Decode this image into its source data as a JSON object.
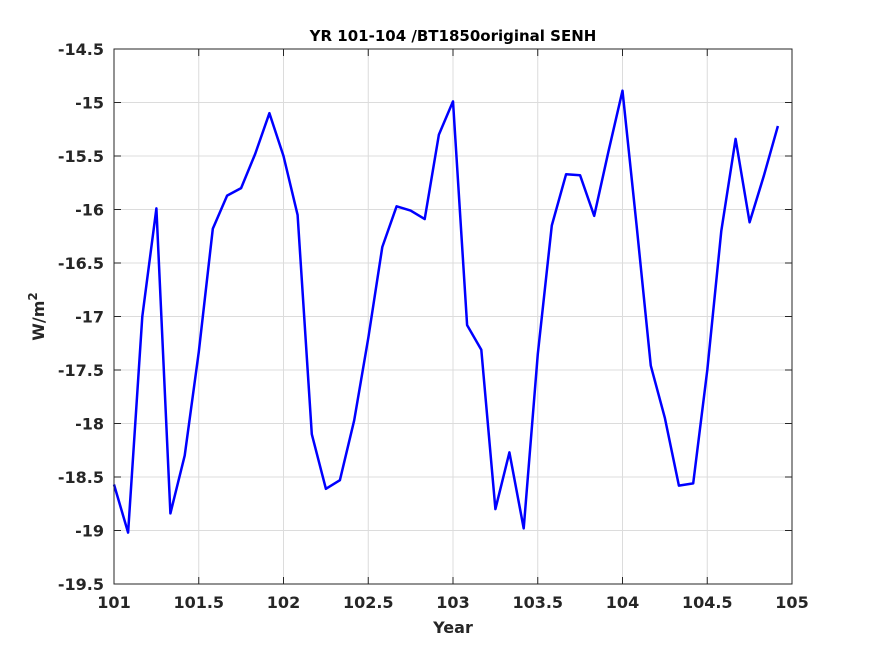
{
  "chart_data": {
    "type": "line",
    "title": "YR 101-104 /BT1850original SENH",
    "xlabel": "Year",
    "ylabel": "W/m",
    "ylabel_superscript": "2",
    "xlim": [
      101,
      105
    ],
    "ylim": [
      -19.5,
      -14.5
    ],
    "xticks": [
      101,
      101.5,
      102,
      102.5,
      103,
      103.5,
      104,
      104.5,
      105
    ],
    "xtick_labels": [
      "101",
      "101.5",
      "102",
      "102.5",
      "103",
      "103.5",
      "104",
      "104.5",
      "105"
    ],
    "yticks": [
      -19.5,
      -19,
      -18.5,
      -18,
      -17.5,
      -17,
      -16.5,
      -16,
      -15.5,
      -15,
      -14.5
    ],
    "ytick_labels": [
      "-19.5",
      "-19",
      "-18.5",
      "-18",
      "-17.5",
      "-17",
      "-16.5",
      "-16",
      "-15.5",
      "-15",
      "-14.5"
    ],
    "grid": true,
    "series": [
      {
        "color": "#0000ff",
        "x": [
          101.0,
          101.083,
          101.167,
          101.25,
          101.333,
          101.417,
          101.5,
          101.583,
          101.667,
          101.75,
          101.833,
          101.917,
          102.0,
          102.083,
          102.167,
          102.25,
          102.333,
          102.417,
          102.5,
          102.583,
          102.667,
          102.75,
          102.833,
          102.917,
          103.0,
          103.083,
          103.167,
          103.25,
          103.333,
          103.417,
          103.5,
          103.583,
          103.667,
          103.75,
          103.833,
          103.917,
          104.0,
          104.083,
          104.167,
          104.25,
          104.333,
          104.417,
          104.5,
          104.583,
          104.667,
          104.75,
          104.833,
          104.917
        ],
        "y": [
          -18.57,
          -19.02,
          -17.0,
          -15.99,
          -18.84,
          -18.3,
          -17.33,
          -16.18,
          -15.87,
          -15.8,
          -15.48,
          -15.1,
          -15.5,
          -16.05,
          -18.1,
          -18.61,
          -18.53,
          -17.97,
          -17.2,
          -16.35,
          -15.97,
          -16.01,
          -16.09,
          -15.3,
          -14.99,
          -17.08,
          -17.31,
          -18.8,
          -18.27,
          -18.98,
          -17.35,
          -16.15,
          -15.67,
          -15.68,
          -16.06,
          -15.46,
          -14.89,
          -16.15,
          -17.46,
          -17.95,
          -18.58,
          -18.56,
          -17.5,
          -16.2,
          -15.34,
          -16.12,
          -15.69,
          -15.22
        ]
      }
    ]
  }
}
